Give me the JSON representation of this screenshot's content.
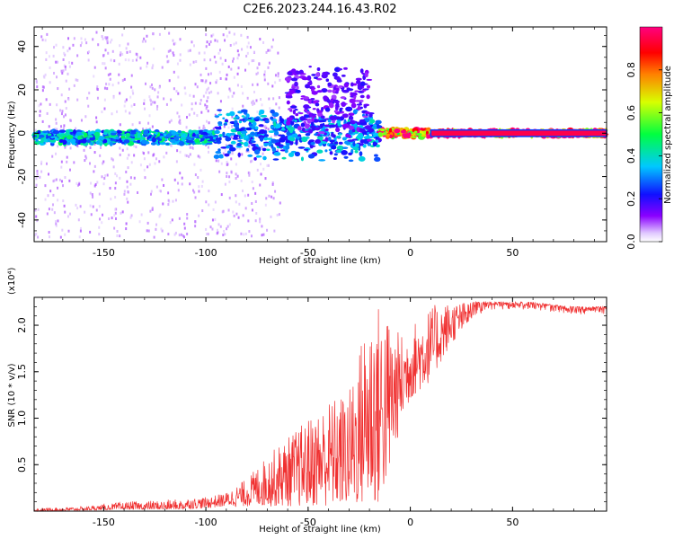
{
  "title": "C2E6.2023.244.16.43.R02",
  "chart_data": [
    {
      "type": "heatmap",
      "xlabel": "Height of straight line (km)",
      "ylabel": "Frequency (Hz)",
      "xlim": [
        -184,
        96
      ],
      "ylim": [
        -50,
        49
      ],
      "xticks": [
        -150,
        -100,
        -50,
        0,
        50
      ],
      "yticks": [
        -40,
        -20,
        0,
        20,
        40
      ],
      "colorbar": {
        "label": "Normalized spectral amplitude",
        "range": [
          0,
          1
        ],
        "ticks": [
          "0.0",
          "0.2",
          "0.4",
          "0.6",
          "0.8"
        ],
        "colormap": "rainbow (purple-blue-cyan-green-yellow-red-magenta)"
      },
      "features": [
        {
          "x": [
            -184,
            -95
          ],
          "freq_center": -2,
          "freq_halfwidth": 3,
          "amplitude": 0.35
        },
        {
          "x": [
            -95,
            -15
          ],
          "freq_center": 0,
          "freq_halfwidth": 8,
          "amplitude": 0.3
        },
        {
          "x": [
            -60,
            -20
          ],
          "freq_center": 15,
          "freq_halfwidth": 15,
          "amplitude": 0.15
        },
        {
          "x": [
            -15,
            10
          ],
          "freq_center": 0,
          "freq_halfwidth": 2,
          "amplitude": 0.8
        },
        {
          "x": [
            10,
            96
          ],
          "freq_center": 0,
          "freq_halfwidth": 1.5,
          "amplitude": 0.95
        }
      ]
    },
    {
      "type": "line",
      "xlabel": "Height of straight line (km)",
      "ylabel": "SNR (10 * v/v)",
      "yscale_label": "(x10⁴)",
      "xlim": [
        -184,
        96
      ],
      "ylim": [
        0,
        2.3
      ],
      "xticks": [
        -150,
        -100,
        -50,
        0,
        50
      ],
      "yticks": [
        0.5,
        1.0,
        1.5,
        2.0
      ],
      "ytick_labels": [
        "0.5",
        "1.0",
        "1.5",
        "2.0"
      ],
      "series": [
        {
          "color": "#f03030",
          "envelope_x": [
            -184,
            -160,
            -140,
            -120,
            -100,
            -90,
            -80,
            -70,
            -60,
            -50,
            -40,
            -30,
            -20,
            -15,
            -10,
            -5,
            0,
            5,
            10,
            15,
            20,
            30,
            40,
            50,
            60,
            70,
            80,
            96
          ],
          "envelope_low": [
            0.0,
            0.01,
            0.02,
            0.02,
            0.03,
            0.05,
            0.05,
            0.05,
            0.05,
            0.05,
            0.05,
            0.05,
            0.05,
            0.05,
            0.4,
            0.9,
            1.2,
            1.3,
            1.4,
            1.6,
            1.8,
            2.05,
            2.15,
            2.15,
            2.15,
            2.12,
            2.1,
            2.08
          ],
          "envelope_high": [
            0.03,
            0.05,
            0.1,
            0.12,
            0.15,
            0.2,
            0.35,
            0.6,
            0.8,
            1.0,
            1.2,
            1.3,
            2.25,
            2.25,
            2.1,
            1.9,
            2.0,
            2.1,
            2.2,
            2.25,
            2.25,
            2.25,
            2.25,
            2.25,
            2.25,
            2.22,
            2.2,
            2.2
          ]
        }
      ]
    }
  ]
}
